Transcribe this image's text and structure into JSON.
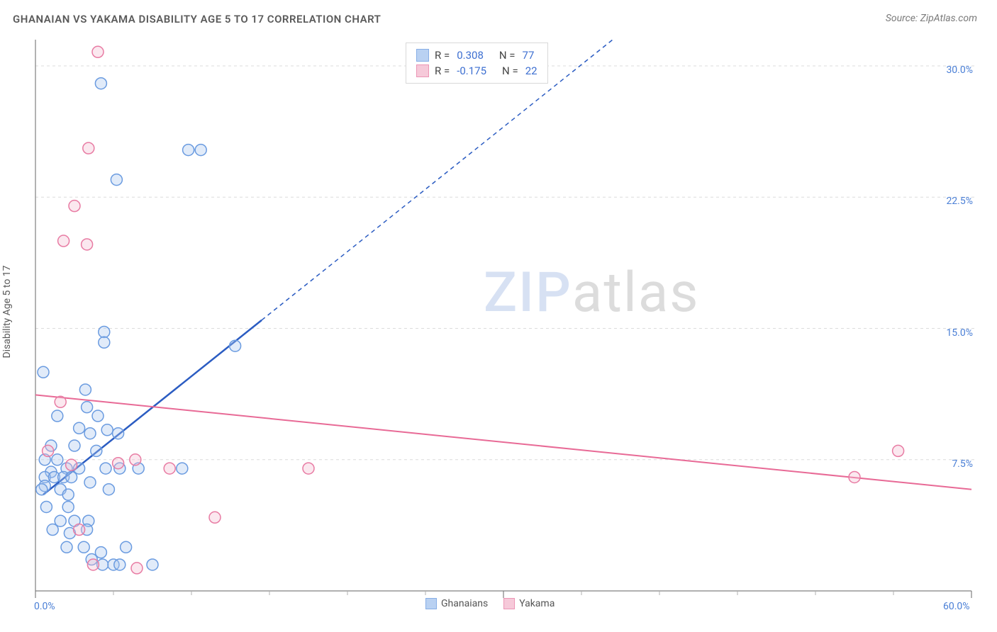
{
  "title": "GHANAIAN VS YAKAMA DISABILITY AGE 5 TO 17 CORRELATION CHART",
  "source_prefix": "Source: ",
  "source_name": "ZipAtlas.com",
  "y_axis_label": "Disability Age 5 to 17",
  "watermark_a": "ZIP",
  "watermark_b": "atlas",
  "chart": {
    "type": "scatter",
    "background_color": "#ffffff",
    "grid_color": "#dcdcdc",
    "axis_color": "#808080",
    "tick_color": "#b0b0b0",
    "label_color": "#4a7fd6",
    "xlim": [
      0,
      60
    ],
    "ylim": [
      0,
      31.5
    ],
    "x_ticks_major": [
      0,
      30,
      60
    ],
    "x_ticks_minor": [
      5,
      10,
      15,
      20,
      25,
      35,
      40,
      45,
      50,
      55
    ],
    "y_gridlines": [
      7.5,
      15.0,
      22.5,
      30.0
    ],
    "x_tick_labels": {
      "0": "0.0%",
      "60": "60.0%"
    },
    "y_tick_labels": {
      "7.5": "7.5%",
      "15.0": "15.0%",
      "22.5": "22.5%",
      "30.0": "30.0%"
    },
    "marker_radius": 8,
    "marker_stroke_width": 1.5,
    "marker_fill_opacity": 0.35,
    "series": [
      {
        "name": "Ghanaians",
        "color_stroke": "#6a9be0",
        "color_fill": "#a8c6ef",
        "trend": {
          "color": "#2b5cc2",
          "width": 2.5,
          "solid_to_x": 14.5,
          "x1": 0.5,
          "y1": 5.5,
          "x2": 37,
          "y2": 31.5
        },
        "points": [
          [
            4.2,
            29.0
          ],
          [
            5.2,
            23.5
          ],
          [
            9.8,
            25.2
          ],
          [
            10.6,
            25.2
          ],
          [
            12.8,
            14.0
          ],
          [
            0.5,
            12.5
          ],
          [
            4.4,
            14.8
          ],
          [
            4.4,
            14.2
          ],
          [
            3.2,
            11.5
          ],
          [
            1.4,
            10.0
          ],
          [
            4.0,
            10.0
          ],
          [
            2.0,
            7.0
          ],
          [
            2.8,
            7.0
          ],
          [
            4.5,
            7.0
          ],
          [
            5.4,
            7.0
          ],
          [
            6.6,
            7.0
          ],
          [
            9.4,
            7.0
          ],
          [
            3.5,
            9.0
          ],
          [
            3.3,
            10.5
          ],
          [
            1.0,
            6.8
          ],
          [
            0.6,
            6.5
          ],
          [
            0.6,
            6.0
          ],
          [
            1.2,
            6.5
          ],
          [
            1.8,
            6.5
          ],
          [
            2.3,
            6.5
          ],
          [
            0.4,
            5.8
          ],
          [
            1.6,
            5.8
          ],
          [
            2.8,
            9.3
          ],
          [
            4.6,
            9.2
          ],
          [
            5.3,
            9.0
          ],
          [
            0.7,
            4.8
          ],
          [
            2.1,
            4.8
          ],
          [
            2.1,
            5.5
          ],
          [
            0.6,
            7.5
          ],
          [
            1.4,
            7.5
          ],
          [
            1.0,
            8.3
          ],
          [
            2.5,
            8.3
          ],
          [
            3.9,
            8.0
          ],
          [
            1.6,
            4.0
          ],
          [
            2.5,
            4.0
          ],
          [
            3.4,
            4.0
          ],
          [
            1.1,
            3.5
          ],
          [
            2.2,
            3.3
          ],
          [
            3.3,
            3.5
          ],
          [
            3.5,
            6.2
          ],
          [
            4.7,
            5.8
          ],
          [
            2.0,
            2.5
          ],
          [
            3.1,
            2.5
          ],
          [
            4.2,
            2.2
          ],
          [
            5.8,
            2.5
          ],
          [
            3.6,
            1.8
          ],
          [
            4.3,
            1.5
          ],
          [
            5.0,
            1.5
          ],
          [
            5.4,
            1.5
          ],
          [
            7.5,
            1.5
          ]
        ]
      },
      {
        "name": "Yakama",
        "color_stroke": "#e87ba3",
        "color_fill": "#f4bcd0",
        "trend": {
          "color": "#e86a96",
          "width": 2,
          "x1": 0,
          "y1": 11.2,
          "x2": 60,
          "y2": 5.8
        },
        "points": [
          [
            4.0,
            30.8
          ],
          [
            3.4,
            25.3
          ],
          [
            2.5,
            22.0
          ],
          [
            1.8,
            20.0
          ],
          [
            3.3,
            19.8
          ],
          [
            1.6,
            10.8
          ],
          [
            0.8,
            8.0
          ],
          [
            2.3,
            7.2
          ],
          [
            5.3,
            7.3
          ],
          [
            6.4,
            7.5
          ],
          [
            8.6,
            7.0
          ],
          [
            17.5,
            7.0
          ],
          [
            11.5,
            4.2
          ],
          [
            2.8,
            3.5
          ],
          [
            3.7,
            1.5
          ],
          [
            6.5,
            1.3
          ],
          [
            52.5,
            6.5
          ],
          [
            55.3,
            8.0
          ]
        ]
      }
    ]
  },
  "legend_top": {
    "rows": [
      {
        "swatch_stroke": "#6a9be0",
        "swatch_fill": "#a8c6ef",
        "r_label": "R =",
        "r_value": "0.308",
        "n_label": "N =",
        "n_value": "77"
      },
      {
        "swatch_stroke": "#e87ba3",
        "swatch_fill": "#f4bcd0",
        "r_label": "R =",
        "r_value": "-0.175",
        "n_label": "N =",
        "n_value": "22"
      }
    ]
  },
  "legend_bottom": {
    "items": [
      {
        "swatch_stroke": "#6a9be0",
        "swatch_fill": "#a8c6ef",
        "label": "Ghanaians"
      },
      {
        "swatch_stroke": "#e87ba3",
        "swatch_fill": "#f4bcd0",
        "label": "Yakama"
      }
    ]
  }
}
